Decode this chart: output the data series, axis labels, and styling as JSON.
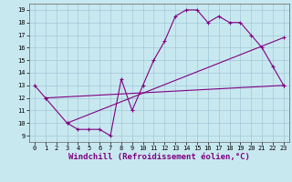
{
  "line1_x": [
    0,
    1,
    3,
    4,
    5,
    6,
    7,
    8,
    9,
    10,
    11,
    12,
    13,
    14,
    15,
    16,
    17,
    18,
    19,
    20,
    21,
    22,
    23
  ],
  "line1_y": [
    13,
    12,
    10,
    9.5,
    9.5,
    9.5,
    9,
    13.5,
    11,
    13,
    15,
    16.5,
    18.5,
    19,
    19,
    18,
    18.5,
    18,
    18,
    17,
    16,
    14.5,
    13
  ],
  "line2_x": [
    1,
    23
  ],
  "line2_y": [
    12,
    13
  ],
  "line3_x": [
    3,
    23
  ],
  "line3_y": [
    10,
    16.8
  ],
  "line_color": "#800080",
  "bg_color": "#c8e8f0",
  "grid_color": "#a0c8d8",
  "xlabel": "Windchill (Refroidissement éolien,°C)",
  "xlim": [
    -0.5,
    23.5
  ],
  "ylim": [
    8.5,
    19.5
  ],
  "yticks": [
    9,
    10,
    11,
    12,
    13,
    14,
    15,
    16,
    17,
    18,
    19
  ],
  "xticks": [
    0,
    1,
    2,
    3,
    4,
    5,
    6,
    7,
    8,
    9,
    10,
    11,
    12,
    13,
    14,
    15,
    16,
    17,
    18,
    19,
    20,
    21,
    22,
    23
  ],
  "tick_fontsize": 5,
  "xlabel_fontsize": 6.5,
  "marker": "+"
}
